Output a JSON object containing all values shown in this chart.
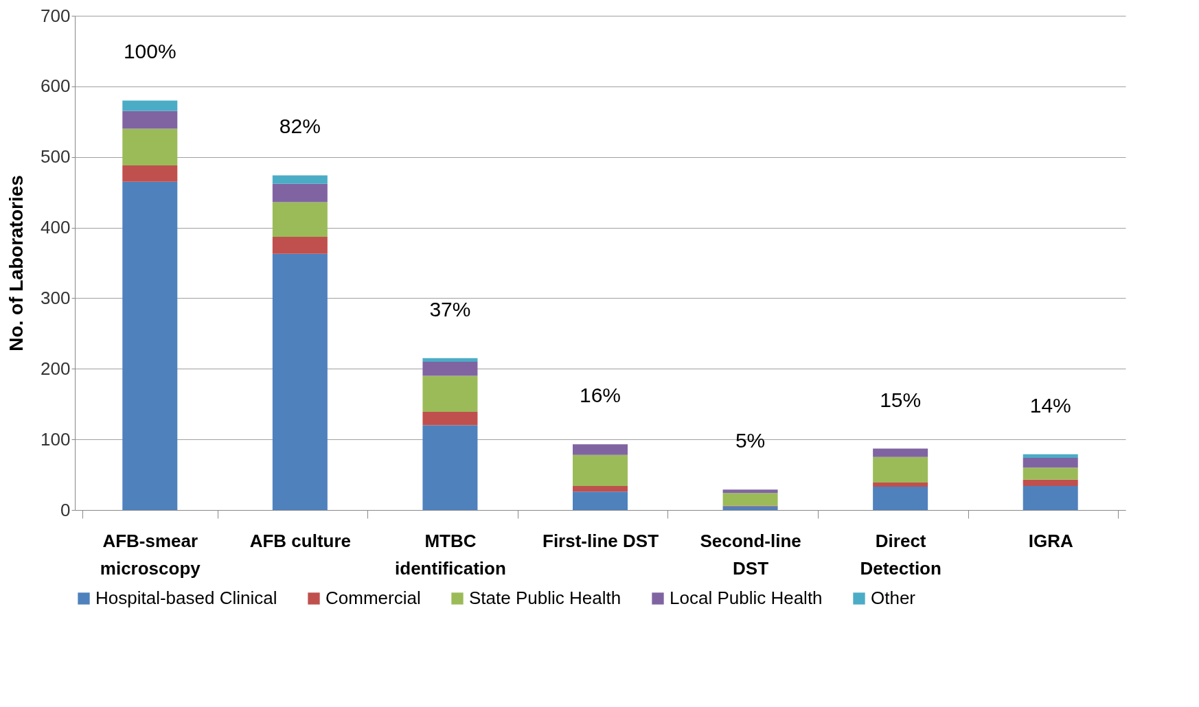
{
  "chart_data": {
    "type": "bar",
    "stacked": true,
    "ylabel": "No. of Laboratories",
    "categories": [
      "AFB-smear\nmicroscopy",
      "AFB culture",
      "MTBC\nidentification",
      "First-line DST",
      "Second-line\nDST",
      "Direct\nDetection",
      "IGRA"
    ],
    "series": [
      {
        "name": "Hospital-based Clinical",
        "color": "#4f81bd",
        "values": [
          465,
          363,
          120,
          26,
          5,
          33,
          34
        ]
      },
      {
        "name": "Commercial",
        "color": "#c0504d",
        "values": [
          23,
          24,
          19,
          8,
          1,
          6,
          9
        ]
      },
      {
        "name": "State Public Health",
        "color": "#9bbb59",
        "values": [
          52,
          49,
          51,
          44,
          18,
          36,
          17
        ]
      },
      {
        "name": "Local Public Health",
        "color": "#8064a2",
        "values": [
          25,
          26,
          20,
          15,
          5,
          12,
          14
        ]
      },
      {
        "name": "Other",
        "color": "#4bacc6",
        "values": [
          15,
          12,
          5,
          0,
          0,
          0,
          5
        ]
      }
    ],
    "ylim": [
      0,
      700
    ],
    "yticks": [
      0,
      100,
      200,
      300,
      400,
      500,
      600,
      700
    ],
    "grid": "y",
    "legend": "bottom",
    "annotations": [
      "100%",
      "82%",
      "37%",
      "16%",
      "5%",
      "15%",
      "14%"
    ]
  }
}
